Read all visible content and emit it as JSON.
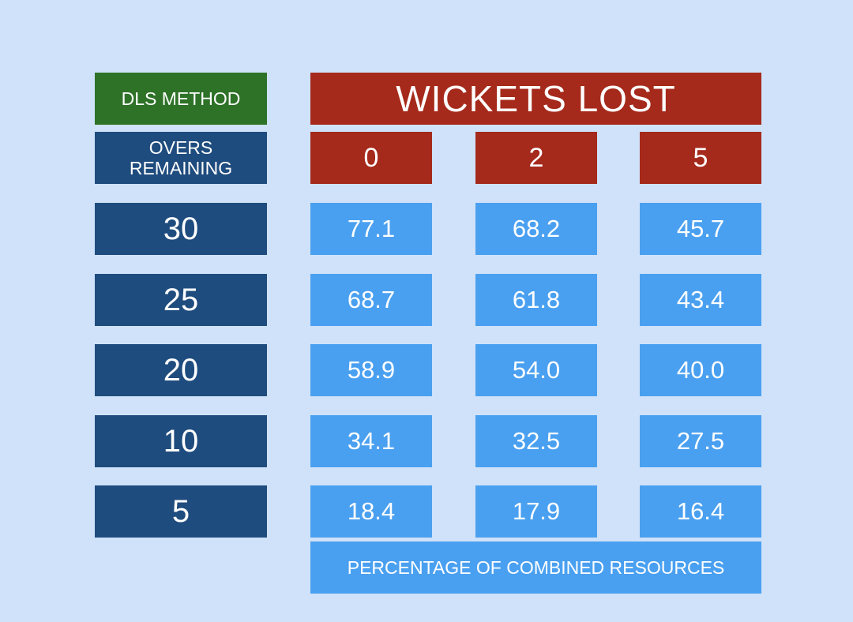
{
  "chart_data": {
    "type": "table",
    "corner_label": "DLS METHOD",
    "title": "WICKETS LOST",
    "row_header_label": "OVERS\nREMAINING",
    "columns": [
      "0",
      "2",
      "5"
    ],
    "rows": [
      {
        "overs": "30",
        "values": [
          "77.1",
          "68.2",
          "45.7"
        ]
      },
      {
        "overs": "25",
        "values": [
          "68.7",
          "61.8",
          "43.4"
        ]
      },
      {
        "overs": "20",
        "values": [
          "58.9",
          "54.0",
          "40.0"
        ]
      },
      {
        "overs": "10",
        "values": [
          "34.1",
          "32.5",
          "27.5"
        ]
      },
      {
        "overs": "5",
        "values": [
          "18.4",
          "17.9",
          "16.4"
        ]
      }
    ],
    "footer": "PERCENTAGE OF COMBINED RESOURCES"
  },
  "colors": {
    "background": "#cfe2f9",
    "method_green": "#2e7228",
    "wickets_red": "#a52a1b",
    "overs_navy": "#1f4c7e",
    "value_blue": "#4aa0f0"
  }
}
